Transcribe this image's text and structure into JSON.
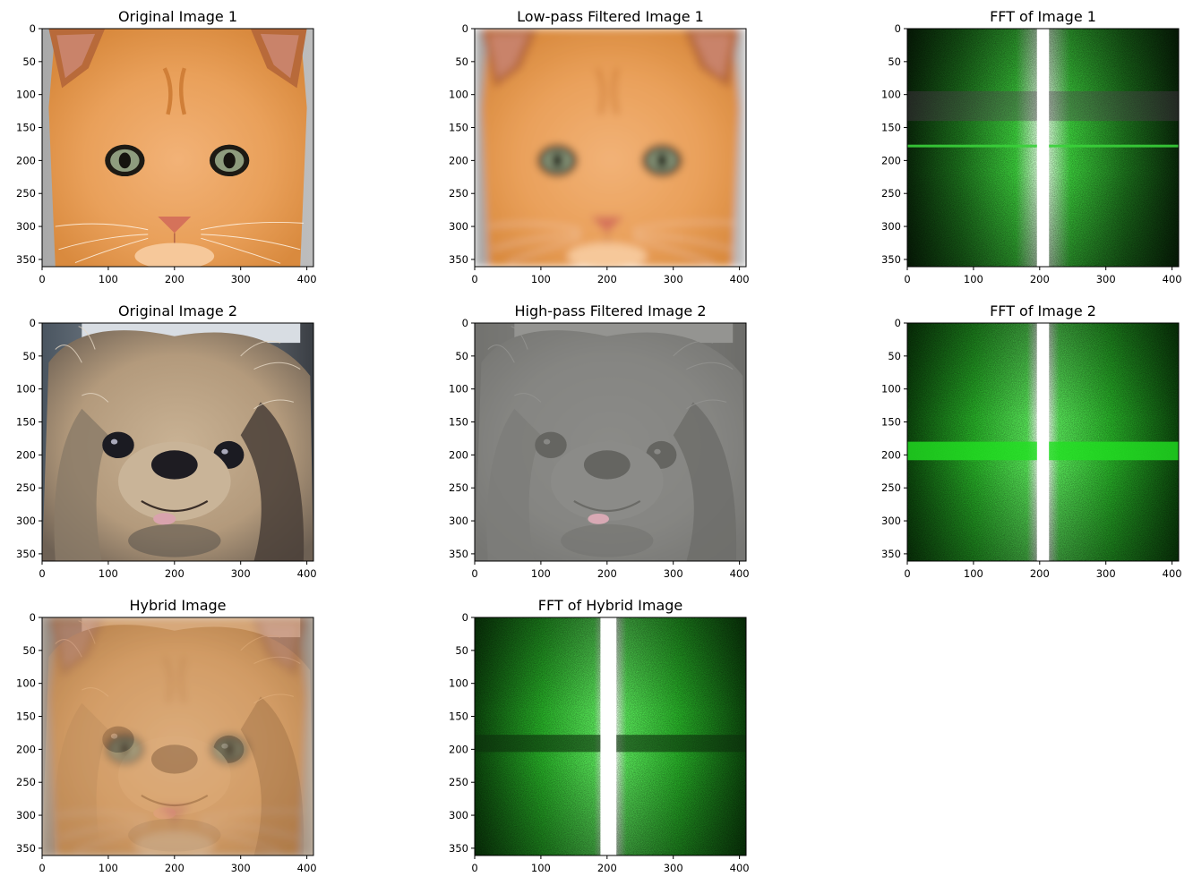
{
  "figure": {
    "panels": [
      {
        "id": "original-image-1",
        "title": "Original Image 1",
        "kind": "cat"
      },
      {
        "id": "low-pass-image-1",
        "title": "Low-pass Filtered Image 1",
        "kind": "cat-blur"
      },
      {
        "id": "fft-image-1",
        "title": "FFT of Image 1",
        "kind": "fft1"
      },
      {
        "id": "original-image-2",
        "title": "Original Image 2",
        "kind": "dog"
      },
      {
        "id": "high-pass-image-2",
        "title": "High-pass Filtered Image 2",
        "kind": "dog-highpass"
      },
      {
        "id": "fft-image-2",
        "title": "FFT of Image 2",
        "kind": "fft2"
      },
      {
        "id": "hybrid-image",
        "title": "Hybrid Image",
        "kind": "hybrid"
      },
      {
        "id": "fft-hybrid-image",
        "title": "FFT of Hybrid Image",
        "kind": "fft3"
      }
    ],
    "x_ticks": [
      "0",
      "100",
      "200",
      "300",
      "400"
    ],
    "x_tick_values": [
      0,
      100,
      200,
      300,
      400
    ],
    "y_ticks": [
      "0",
      "50",
      "100",
      "150",
      "200",
      "250",
      "300",
      "350"
    ],
    "y_tick_values": [
      0,
      50,
      100,
      150,
      200,
      250,
      300,
      350
    ],
    "x_range": [
      0,
      410
    ],
    "y_range": [
      0,
      361
    ]
  }
}
